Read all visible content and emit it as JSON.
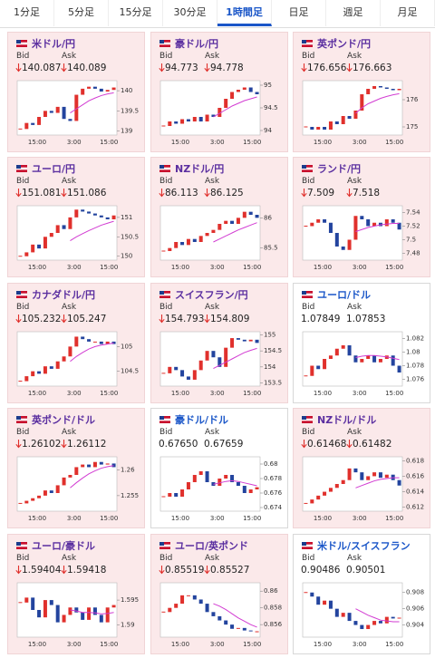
{
  "tabs": [
    "1分足",
    "5分足",
    "15分足",
    "30分足",
    "1時間足",
    "日足",
    "週足",
    "月足"
  ],
  "active_tab": 4,
  "bid_label": "Bid",
  "ask_label": "Ask",
  "xticks": [
    "15:00",
    "3:00",
    "15:00"
  ],
  "up_color": "#e0302c",
  "down_color": "#23449e",
  "ma_color": "#d23cd2",
  "cards": [
    {
      "title": "米ドル/円",
      "bid": "140.087",
      "ask": "140.089",
      "down": true,
      "chart": {
        "type": "candlestick",
        "ylim": [
          138.9,
          140.25
        ],
        "yticks": [
          139,
          139.5,
          140
        ],
        "values": [
          139.05,
          139.2,
          139.15,
          139.35,
          139.5,
          139.45,
          139.6,
          139.3,
          139.25,
          139.9,
          140.05,
          140.1,
          140.05,
          139.98,
          140.02,
          140.08
        ],
        "ma": [
          null,
          null,
          null,
          null,
          null,
          null,
          null,
          null,
          139.45,
          139.55,
          139.65,
          139.75,
          139.82,
          139.88,
          139.92,
          139.95
        ]
      }
    },
    {
      "title": "豪ドル/円",
      "bid": "94.773",
      "ask": "94.778",
      "down": true,
      "chart": {
        "type": "candlestick",
        "ylim": [
          93.9,
          95.1
        ],
        "yticks": [
          94,
          94.5,
          95
        ],
        "values": [
          94.1,
          94.2,
          94.15,
          94.25,
          94.2,
          94.3,
          94.2,
          94.35,
          94.3,
          94.5,
          94.7,
          94.85,
          94.9,
          94.95,
          94.85,
          94.8
        ],
        "ma": [
          null,
          null,
          null,
          null,
          null,
          null,
          null,
          null,
          94.3,
          94.38,
          94.46,
          94.54,
          94.6,
          94.66,
          94.7,
          94.74
        ]
      }
    },
    {
      "title": "英ポンド/円",
      "bid": "176.656",
      "ask": "176.663",
      "down": true,
      "chart": {
        "type": "candlestick",
        "ylim": [
          174.7,
          176.7
        ],
        "yticks": [
          175,
          176
        ],
        "values": [
          175.0,
          174.9,
          175.0,
          174.9,
          175.2,
          175.1,
          175.4,
          175.3,
          175.6,
          176.2,
          176.4,
          176.5,
          176.45,
          176.4,
          176.35,
          176.4
        ],
        "ma": [
          null,
          null,
          null,
          null,
          null,
          null,
          null,
          null,
          175.5,
          175.7,
          175.85,
          175.95,
          176.05,
          176.12,
          176.18,
          176.22
        ]
      }
    },
    {
      "title": "ユーロ/円",
      "bid": "151.081",
      "ask": "151.086",
      "down": true,
      "chart": {
        "type": "candlestick",
        "ylim": [
          149.9,
          151.3
        ],
        "yticks": [
          150,
          150.5,
          151
        ],
        "values": [
          150.0,
          150.1,
          150.3,
          150.2,
          150.5,
          150.6,
          150.8,
          150.7,
          151.0,
          151.2,
          151.15,
          151.1,
          151.05,
          151.0,
          150.95,
          151.05
        ],
        "ma": [
          null,
          null,
          null,
          null,
          null,
          null,
          null,
          null,
          150.4,
          150.5,
          150.58,
          150.66,
          150.73,
          150.8,
          150.85,
          150.9
        ]
      }
    },
    {
      "title": "NZドル/円",
      "bid": "86.113",
      "ask": "86.125",
      "down": true,
      "chart": {
        "type": "candlestick",
        "ylim": [
          85.3,
          86.2
        ],
        "yticks": [
          85.5,
          86
        ],
        "values": [
          85.45,
          85.5,
          85.6,
          85.55,
          85.65,
          85.6,
          85.7,
          85.75,
          85.8,
          85.9,
          85.95,
          85.9,
          86.0,
          86.1,
          86.05,
          86.0
        ],
        "ma": [
          null,
          null,
          null,
          null,
          null,
          null,
          null,
          null,
          85.6,
          85.65,
          85.7,
          85.75,
          85.8,
          85.84,
          85.88,
          85.92
        ]
      }
    },
    {
      "title": "ランド/円",
      "bid": "7.509",
      "ask": "7.518",
      "down": true,
      "chart": {
        "type": "candlestick",
        "ylim": [
          7.47,
          7.55
        ],
        "yticks": [
          7.48,
          7.5,
          7.52,
          7.54
        ],
        "values": [
          7.52,
          7.525,
          7.53,
          7.525,
          7.51,
          7.49,
          7.485,
          7.5,
          7.535,
          7.53,
          7.52,
          7.525,
          7.52,
          7.53,
          7.525,
          7.515
        ],
        "ma": [
          null,
          null,
          null,
          null,
          null,
          null,
          null,
          null,
          7.512,
          7.515,
          7.518,
          7.52,
          7.522,
          7.523,
          7.524,
          7.524
        ]
      }
    },
    {
      "title": "カナダドル/円",
      "bid": "105.232",
      "ask": "105.247",
      "down": true,
      "chart": {
        "type": "candlestick",
        "ylim": [
          104.2,
          105.3
        ],
        "yticks": [
          104.5,
          105
        ],
        "values": [
          104.3,
          104.4,
          104.5,
          104.45,
          104.6,
          104.55,
          104.7,
          104.8,
          105.0,
          105.2,
          105.15,
          105.1,
          105.1,
          105.05,
          105.1,
          105.05
        ],
        "ma": [
          null,
          null,
          null,
          null,
          null,
          null,
          null,
          null,
          104.7,
          104.8,
          104.88,
          104.95,
          105.0,
          105.03,
          105.05,
          105.07
        ]
      }
    },
    {
      "title": "スイスフラン/円",
      "bid": "154.793",
      "ask": "154.809",
      "down": true,
      "chart": {
        "type": "candlestick",
        "ylim": [
          153.4,
          155.1
        ],
        "yticks": [
          153.5,
          154,
          154.5,
          155
        ],
        "values": [
          153.8,
          154.0,
          153.9,
          153.7,
          153.6,
          153.9,
          154.2,
          154.5,
          154.3,
          154.0,
          154.6,
          154.9,
          154.85,
          154.8,
          154.85,
          154.75
        ],
        "ma": [
          null,
          null,
          null,
          null,
          null,
          null,
          null,
          null,
          153.95,
          154.05,
          154.15,
          154.25,
          154.35,
          154.45,
          154.52,
          154.58
        ]
      }
    },
    {
      "title": "ユーロ/ドル",
      "bid": "1.07849",
      "ask": "1.07853",
      "down": false,
      "chart": {
        "type": "candlestick",
        "ylim": [
          1.075,
          1.083
        ],
        "yticks": [
          1.076,
          1.078,
          1.08,
          1.082
        ],
        "values": [
          1.0765,
          1.078,
          1.0775,
          1.079,
          1.0795,
          1.0805,
          1.081,
          1.0795,
          1.0785,
          1.079,
          1.0795,
          1.0785,
          1.079,
          1.0795,
          1.078,
          1.077
        ],
        "ma": [
          null,
          null,
          null,
          null,
          null,
          null,
          null,
          null,
          1.0792,
          1.0794,
          1.0795,
          1.0795,
          1.0794,
          1.0793,
          1.0791,
          1.0789
        ]
      }
    },
    {
      "title": "英ポンド/ドル",
      "bid": "1.26102",
      "ask": "1.26112",
      "down": true,
      "chart": {
        "type": "candlestick",
        "ylim": [
          1.252,
          1.2625
        ],
        "yticks": [
          1.255,
          1.26
        ],
        "values": [
          1.2535,
          1.254,
          1.2545,
          1.255,
          1.256,
          1.2555,
          1.257,
          1.2585,
          1.259,
          1.2605,
          1.261,
          1.2605,
          1.2615,
          1.261,
          1.2612,
          1.2605
        ],
        "ma": [
          null,
          null,
          null,
          null,
          null,
          null,
          null,
          null,
          1.2565,
          1.2575,
          1.2584,
          1.2592,
          1.2598,
          1.2603,
          1.2606,
          1.2608
        ]
      }
    },
    {
      "title": "豪ドル/ドル",
      "bid": "0.67650",
      "ask": "0.67659",
      "down": false,
      "chart": {
        "type": "candlestick",
        "ylim": [
          0.6735,
          0.681
        ],
        "yticks": [
          0.674,
          0.676,
          0.678,
          0.68
        ],
        "values": [
          0.6755,
          0.676,
          0.6755,
          0.6765,
          0.6775,
          0.6785,
          0.679,
          0.6775,
          0.677,
          0.678,
          0.6785,
          0.6775,
          0.677,
          0.676,
          0.6765,
          0.6768
        ],
        "ma": [
          null,
          null,
          null,
          null,
          null,
          null,
          null,
          null,
          0.6772,
          0.6774,
          0.6776,
          0.6777,
          0.6776,
          0.6774,
          0.6772,
          0.677
        ]
      }
    },
    {
      "title": "NZドル/ドル",
      "bid": "0.61468",
      "ask": "0.61482",
      "down": true,
      "chart": {
        "type": "candlestick",
        "ylim": [
          0.6115,
          0.6185
        ],
        "yticks": [
          0.612,
          0.614,
          0.616,
          0.618
        ],
        "values": [
          0.6125,
          0.613,
          0.6135,
          0.614,
          0.6145,
          0.615,
          0.6155,
          0.617,
          0.6165,
          0.6155,
          0.616,
          0.6165,
          0.6158,
          0.6162,
          0.6155,
          0.6148
        ],
        "ma": [
          null,
          null,
          null,
          null,
          null,
          null,
          null,
          null,
          0.6145,
          0.6148,
          0.6151,
          0.6154,
          0.6156,
          0.6157,
          0.6158,
          0.6158
        ]
      }
    },
    {
      "title": "ユーロ/豪ドル",
      "bid": "1.59404",
      "ask": "1.59418",
      "down": true,
      "chart": {
        "type": "candlestick",
        "ylim": [
          1.5875,
          1.5985
        ],
        "yticks": [
          1.59,
          1.595
        ],
        "values": [
          1.5945,
          1.5955,
          1.593,
          1.5915,
          1.595,
          1.594,
          1.5905,
          1.592,
          1.5935,
          1.5925,
          1.591,
          1.5935,
          1.592,
          1.5905,
          1.5935,
          1.594
        ],
        "ma": [
          null,
          null,
          null,
          null,
          null,
          null,
          null,
          null,
          1.593,
          1.5928,
          1.5925,
          1.5925,
          1.5924,
          1.5922,
          1.5923,
          1.5925
        ]
      }
    },
    {
      "title": "ユーロ/英ポンド",
      "bid": "0.85519",
      "ask": "0.85527",
      "down": true,
      "chart": {
        "type": "candlestick",
        "ylim": [
          0.8545,
          0.861
        ],
        "yticks": [
          0.856,
          0.858,
          0.86
        ],
        "values": [
          0.8575,
          0.858,
          0.8585,
          0.8595,
          0.8595,
          0.859,
          0.8585,
          0.8575,
          0.857,
          0.8565,
          0.856,
          0.8555,
          0.8556,
          0.8553,
          0.8552,
          0.8552
        ],
        "ma": [
          null,
          null,
          null,
          null,
          null,
          null,
          null,
          null,
          0.8585,
          0.8582,
          0.8578,
          0.8573,
          0.8568,
          0.8564,
          0.856,
          0.8557
        ]
      }
    },
    {
      "title": "米ドル/スイスフラン",
      "bid": "0.90486",
      "ask": "0.90501",
      "down": false,
      "chart": {
        "type": "candlestick",
        "ylim": [
          0.9025,
          0.9092
        ],
        "yticks": [
          0.904,
          0.906,
          0.908
        ],
        "values": [
          0.908,
          0.9075,
          0.9065,
          0.907,
          0.906,
          0.905,
          0.9055,
          0.9045,
          0.904,
          0.9035,
          0.904,
          0.9045,
          0.9042,
          0.905,
          0.9048,
          0.9049
        ],
        "ma": [
          null,
          null,
          null,
          null,
          null,
          null,
          null,
          null,
          0.906,
          0.9056,
          0.9052,
          0.9049,
          0.9046,
          0.9045,
          0.9044,
          0.9044
        ]
      }
    }
  ]
}
